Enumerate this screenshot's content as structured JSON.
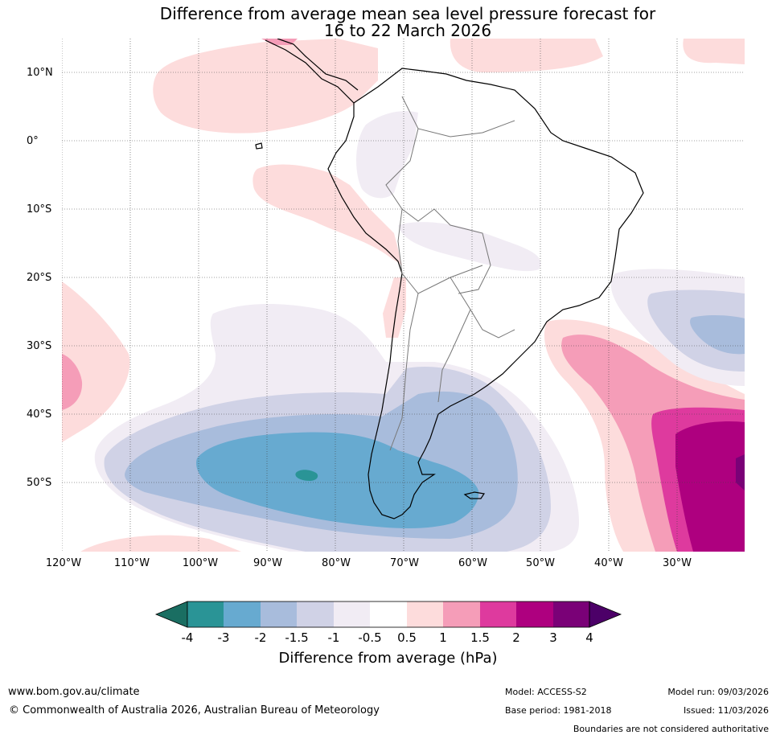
{
  "title_line1": "Difference from average mean sea level pressure forecast for",
  "title_line2": "16 to 22 March 2026",
  "map": {
    "region": "South America and surrounding oceans",
    "lon_range_deg": [
      -120,
      -20
    ],
    "lat_range_deg": [
      -60,
      15
    ],
    "lat_labels": [
      "10°N",
      "0°",
      "10°S",
      "20°S",
      "30°S",
      "40°S",
      "50°S"
    ],
    "lon_labels": [
      "120°W",
      "110°W",
      "100°W",
      "90°W",
      "80°W",
      "70°W",
      "60°W",
      "50°W",
      "40°W",
      "30°W"
    ],
    "anomaly_features": [
      {
        "name": "negative anomaly southern Pacific / Drake Passage",
        "lon_center": -80,
        "lat_center": -48,
        "min_hpa": -4
      },
      {
        "name": "negative anomaly south Atlantic",
        "lon_center": -30,
        "lat_center": -30,
        "min_hpa": -2
      },
      {
        "name": "positive anomaly south Atlantic",
        "lon_center": -25,
        "lat_center": -48,
        "max_hpa": 4
      },
      {
        "name": "positive anomaly eastern Pacific",
        "lon_center": -120,
        "lat_center": -35,
        "max_hpa": 1.5
      },
      {
        "name": "positive anomaly Caribbean",
        "lon_center": -85,
        "lat_center": 12,
        "max_hpa": 1.5
      }
    ]
  },
  "colorbar": {
    "ticks": [
      "-4",
      "-3",
      "-2",
      "-1.5",
      "-1",
      "-0.5",
      "0.5",
      "1",
      "1.5",
      "2",
      "3",
      "4"
    ],
    "colors": [
      "#1a6e62",
      "#2a9496",
      "#67aad0",
      "#a8bcdc",
      "#d0d2e6",
      "#f1ecf4",
      "#ffffff",
      "#fddcdc",
      "#f59db8",
      "#de3a9e",
      "#ae007f",
      "#7a0177",
      "#4c0068"
    ],
    "label": "Difference from average (hPa)"
  },
  "footer": {
    "site": "www.bom.gov.au/climate",
    "copyright": "© Commonwealth of Australia 2026, Australian Bureau of Meteorology",
    "model": "Model: ACCESS-S2",
    "base_period": "Base period: 1981-2018",
    "model_run": "Model run: 09/03/2026",
    "issued": "Issued: 11/03/2026",
    "disclaimer": "Boundaries are not considered authoritative"
  }
}
